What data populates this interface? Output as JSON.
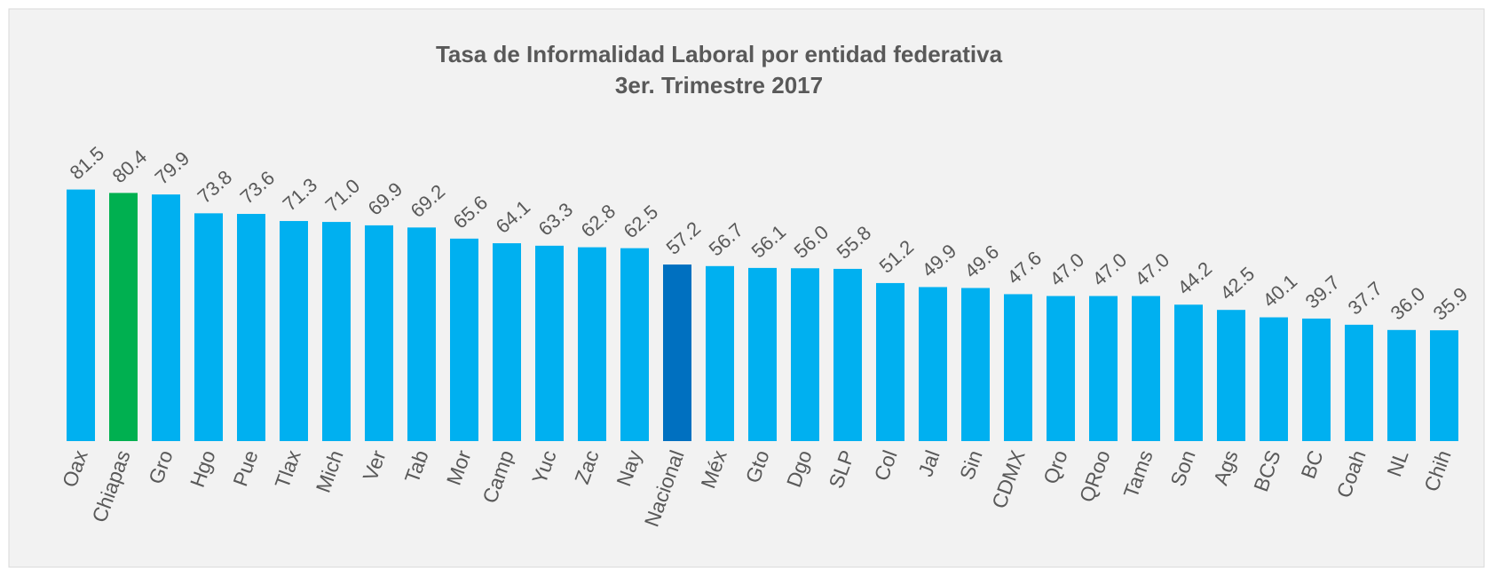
{
  "chart_data": {
    "type": "bar",
    "title": "Tasa de Informalidad Laboral por entidad federativa",
    "subtitle": "3er. Trimestre 2017",
    "categories": [
      "Oax",
      "Chiapas",
      "Gro",
      "Hgo",
      "Pue",
      "Tlax",
      "Mich",
      "Ver",
      "Tab",
      "Mor",
      "Camp",
      "Yuc",
      "Zac",
      "Nay",
      "Nacional",
      "Méx",
      "Gto",
      "Dgo",
      "SLP",
      "Col",
      "Jal",
      "Sin",
      "CDMX",
      "Qro",
      "QRoo",
      "Tams",
      "Son",
      "Ags",
      "BCS",
      "BC",
      "Coah",
      "NL",
      "Chih"
    ],
    "values": [
      81.5,
      80.4,
      79.9,
      73.8,
      73.6,
      71.3,
      71.0,
      69.9,
      69.2,
      65.6,
      64.1,
      63.3,
      62.8,
      62.5,
      57.2,
      56.7,
      56.1,
      56.0,
      55.8,
      51.2,
      49.9,
      49.6,
      47.6,
      47.0,
      47.0,
      47.0,
      44.2,
      42.5,
      40.1,
      39.7,
      37.7,
      36.0,
      35.9
    ],
    "value_labels": [
      "81.5",
      "80.4",
      "79.9",
      "73.8",
      "73.6",
      "71.3",
      "71.0",
      "69.9",
      "69.2",
      "65.6",
      "64.1",
      "63.3",
      "62.8",
      "62.5",
      "57.2",
      "56.7",
      "56.1",
      "56.0",
      "55.8",
      "51.2",
      "49.9",
      "49.6",
      "47.6",
      "47.0",
      "47.0",
      "47.0",
      "44.2",
      "42.5",
      "40.1",
      "39.7",
      "37.7",
      "36.0",
      "35.9"
    ],
    "colors": [
      "#00b0f0",
      "#00b050",
      "#00b0f0",
      "#00b0f0",
      "#00b0f0",
      "#00b0f0",
      "#00b0f0",
      "#00b0f0",
      "#00b0f0",
      "#00b0f0",
      "#00b0f0",
      "#00b0f0",
      "#00b0f0",
      "#00b0f0",
      "#0070c0",
      "#00b0f0",
      "#00b0f0",
      "#00b0f0",
      "#00b0f0",
      "#00b0f0",
      "#00b0f0",
      "#00b0f0",
      "#00b0f0",
      "#00b0f0",
      "#00b0f0",
      "#00b0f0",
      "#00b0f0",
      "#00b0f0",
      "#00b0f0",
      "#00b0f0",
      "#00b0f0",
      "#00b0f0",
      "#00b0f0"
    ],
    "ylim": [
      0,
      90
    ]
  }
}
